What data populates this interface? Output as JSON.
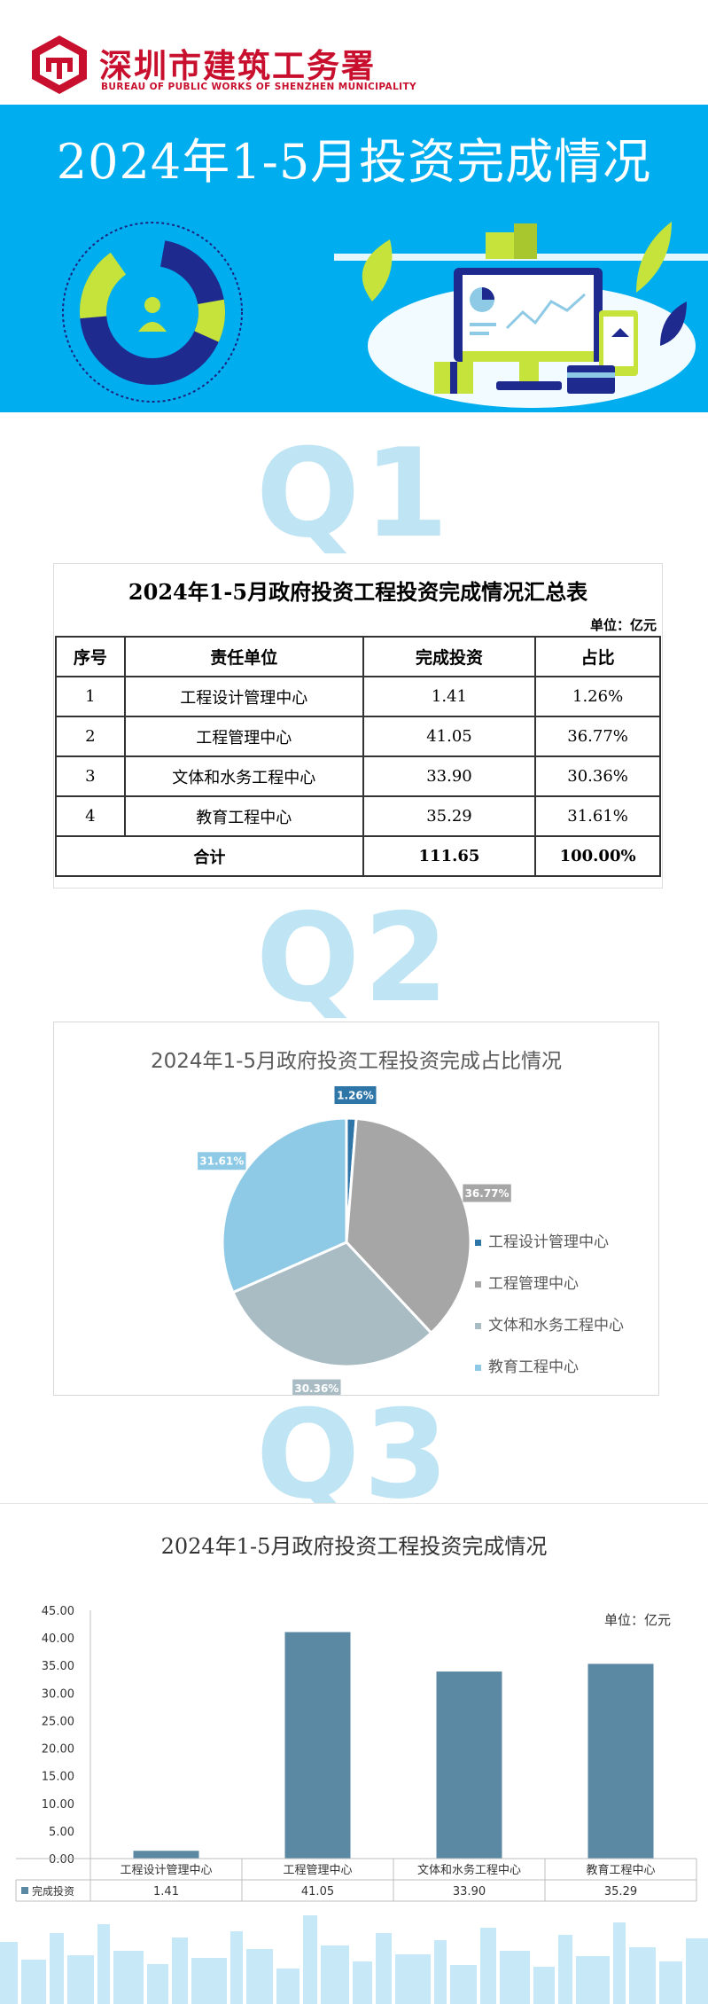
{
  "header": {
    "org_name": "深圳市建筑工务署",
    "org_name_en": "BUREAU OF PUBLIC WORKS OF SHENZHEN MUNICIPALITY",
    "title": "2024年1-5月投资完成情况",
    "accent_color": "#00aeef",
    "brand_color": "#c8102e"
  },
  "sections": {
    "q1": "Q1",
    "q2": "Q2",
    "q3": "Q3"
  },
  "table": {
    "title": "2024年1-5月政府投资工程投资完成情况汇总表",
    "unit": "单位：亿元",
    "headers": [
      "序号",
      "责任单位",
      "完成投资",
      "占比"
    ],
    "rows": [
      [
        "1",
        "工程设计管理中心",
        "1.41",
        "1.26%"
      ],
      [
        "2",
        "工程管理中心",
        "41.05",
        "36.77%"
      ],
      [
        "3",
        "文体和水务工程中心",
        "33.90",
        "30.36%"
      ],
      [
        "4",
        "教育工程中心",
        "35.29",
        "31.61%"
      ]
    ],
    "total": {
      "label": "合计",
      "value": "111.65",
      "share": "100.00%"
    }
  },
  "chart_data": [
    {
      "type": "pie",
      "title": "2024年1-5月政府投资工程投资完成占比情况",
      "legend_position": "right",
      "categories": [
        "工程设计管理中心",
        "工程管理中心",
        "文体和水务工程中心",
        "教育工程中心"
      ],
      "values": [
        1.26,
        36.77,
        30.36,
        31.61
      ],
      "labels": [
        "1.26%",
        "36.77%",
        "30.36%",
        "31.61%"
      ],
      "colors": [
        "#2e75a8",
        "#a6a6a6",
        "#a9bcc4",
        "#8ecae6"
      ]
    },
    {
      "type": "bar",
      "title": "2024年1-5月政府投资工程投资完成情况",
      "unit": "单位：亿元",
      "categories": [
        "工程设计管理中心",
        "工程管理中心",
        "文体和水务工程中心",
        "教育工程中心"
      ],
      "series": [
        {
          "name": "完成投资",
          "values": [
            1.41,
            41.05,
            33.9,
            35.29
          ],
          "labels": [
            "1.41",
            "41.05",
            "33.90",
            "35.29"
          ]
        }
      ],
      "ylim": [
        0,
        45
      ],
      "yticks": [
        "0.00",
        "5.00",
        "10.00",
        "15.00",
        "20.00",
        "25.00",
        "30.00",
        "35.00",
        "40.00",
        "45.00"
      ],
      "grid": false,
      "legend_position": "bottom-table",
      "bar_color": "#5b89a4"
    }
  ]
}
